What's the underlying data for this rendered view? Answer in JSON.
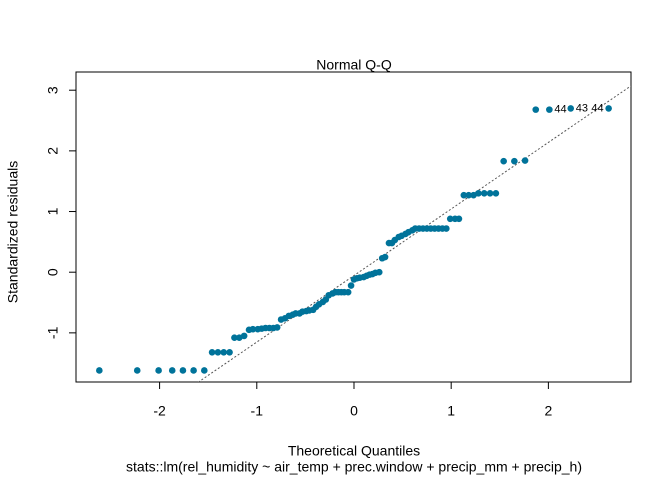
{
  "chart_data": {
    "type": "scatter",
    "title": "Normal Q-Q",
    "xlabel": "Theoretical Quantiles",
    "subtitle": "stats::lm(rel_humidity ~ air_temp + prec.window + precip_mm + precip_h)",
    "ylabel": "Standardized residuals",
    "xlim": [
      -2.86,
      2.85
    ],
    "ylim": [
      -1.81,
      3.3
    ],
    "xticks": [
      -2,
      -1,
      0,
      1,
      2
    ],
    "yticks": [
      -1,
      0,
      1,
      2,
      3
    ],
    "reference_line": {
      "slope": 1.097,
      "intercept": -0.055
    },
    "series": [
      {
        "color": "#00739a",
        "x": [
          -2.62,
          -2.23,
          -2.01,
          -1.87,
          -1.76,
          -1.65,
          -1.54,
          -1.46,
          -1.4,
          -1.34,
          -1.28,
          -1.23,
          -1.18,
          -1.13,
          -1.08,
          -1.04,
          -0.99,
          -0.95,
          -0.91,
          -0.87,
          -0.83,
          -0.79,
          -0.75,
          -0.71,
          -0.67,
          -0.63,
          -0.6,
          -0.56,
          -0.53,
          -0.49,
          -0.46,
          -0.42,
          -0.39,
          -0.36,
          -0.32,
          -0.29,
          -0.26,
          -0.22,
          -0.19,
          -0.16,
          -0.13,
          -0.1,
          -0.06,
          -0.03,
          0.0,
          0.03,
          0.06,
          0.1,
          0.13,
          0.16,
          0.19,
          0.22,
          0.26,
          0.29,
          0.32,
          0.36,
          0.39,
          0.42,
          0.46,
          0.49,
          0.53,
          0.56,
          0.6,
          0.63,
          0.67,
          0.71,
          0.75,
          0.79,
          0.83,
          0.87,
          0.91,
          0.95,
          0.99,
          1.04,
          1.08,
          1.13,
          1.18,
          1.23,
          1.28,
          1.34,
          1.4,
          1.46,
          1.54,
          1.65,
          1.76,
          1.87,
          2.01,
          2.23,
          2.62
        ],
        "values": [
          -1.62,
          -1.62,
          -1.62,
          -1.62,
          -1.62,
          -1.62,
          -1.62,
          -1.32,
          -1.32,
          -1.32,
          -1.32,
          -1.08,
          -1.08,
          -1.05,
          -0.95,
          -0.94,
          -0.94,
          -0.93,
          -0.92,
          -0.92,
          -0.92,
          -0.91,
          -0.78,
          -0.76,
          -0.72,
          -0.7,
          -0.68,
          -0.68,
          -0.65,
          -0.64,
          -0.63,
          -0.62,
          -0.57,
          -0.53,
          -0.49,
          -0.45,
          -0.38,
          -0.35,
          -0.33,
          -0.33,
          -0.33,
          -0.33,
          -0.33,
          -0.22,
          -0.12,
          -0.1,
          -0.09,
          -0.08,
          -0.06,
          -0.04,
          -0.03,
          -0.01,
          0.0,
          0.23,
          0.25,
          0.48,
          0.48,
          0.53,
          0.58,
          0.6,
          0.63,
          0.66,
          0.69,
          0.72,
          0.72,
          0.72,
          0.72,
          0.72,
          0.72,
          0.72,
          0.72,
          0.72,
          0.88,
          0.88,
          0.88,
          1.27,
          1.27,
          1.27,
          1.3,
          1.3,
          1.3,
          1.3,
          1.83,
          1.83,
          1.84,
          2.68,
          2.68,
          2.7,
          2.7
        ]
      }
    ],
    "annotations": [
      {
        "text": "44",
        "point": 86
      },
      {
        "text": "43",
        "point": 87
      },
      {
        "text": "44",
        "point": 88
      }
    ]
  }
}
